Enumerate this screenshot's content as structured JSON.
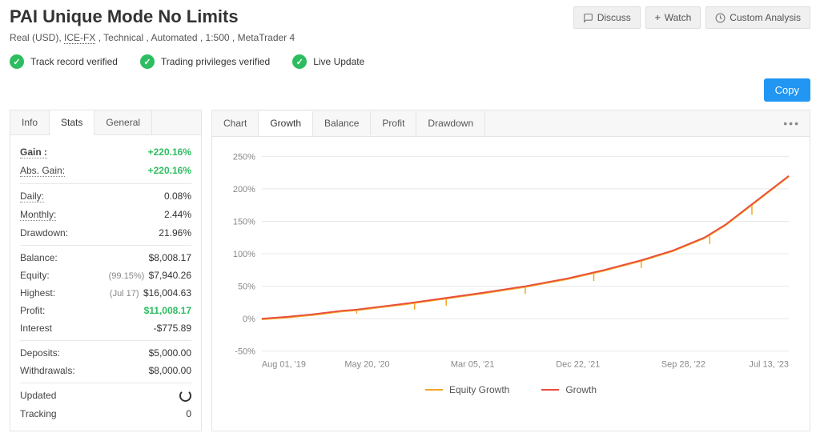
{
  "header": {
    "title": "PAI Unique Mode No Limits",
    "subtitle_pre": "Real (USD), ",
    "subtitle_link": "ICE-FX",
    "subtitle_post": " , Technical , Automated , 1:500 , MetaTrader 4",
    "buttons": {
      "discuss": "Discuss",
      "watch": "Watch",
      "custom": "Custom Analysis"
    }
  },
  "verify": {
    "track": "Track record verified",
    "priv": "Trading privileges verified",
    "live": "Live Update"
  },
  "copy_label": "Copy",
  "side_tabs": {
    "info": "Info",
    "stats": "Stats",
    "general": "General"
  },
  "stats": {
    "gain_l": "Gain :",
    "gain_v": "+220.16%",
    "abs_l": "Abs. Gain:",
    "abs_v": "+220.16%",
    "daily_l": "Daily:",
    "daily_v": "0.08%",
    "monthly_l": "Monthly:",
    "monthly_v": "2.44%",
    "dd_l": "Drawdown:",
    "dd_v": "21.96%",
    "bal_l": "Balance:",
    "bal_v": "$8,008.17",
    "eq_l": "Equity:",
    "eq_note": "(99.15%)",
    "eq_v": "$7,940.26",
    "hi_l": "Highest:",
    "hi_note": "(Jul 17)",
    "hi_v": "$16,004.63",
    "pr_l": "Profit:",
    "pr_v": "$11,008.17",
    "int_l": "Interest",
    "int_v": "-$775.89",
    "dep_l": "Deposits:",
    "dep_v": "$5,000.00",
    "wd_l": "Withdrawals:",
    "wd_v": "$8,000.00",
    "upd_l": "Updated",
    "trk_l": "Tracking",
    "trk_v": "0"
  },
  "chart_tabs": {
    "chart": "Chart",
    "growth": "Growth",
    "balance": "Balance",
    "profit": "Profit",
    "drawdown": "Drawdown"
  },
  "chart": {
    "ylim": [
      -50,
      250
    ],
    "yticks": [
      "-50%",
      "0%",
      "50%",
      "100%",
      "150%",
      "200%",
      "250%"
    ],
    "xticks": [
      "Aug 01, '19",
      "May 20, '20",
      "Mar 05, '21",
      "Dec 22, '21",
      "Sep 28, '22",
      "Jul 13, '23"
    ],
    "growth_color": "#e84c3d",
    "equity_color": "#f5a623",
    "grid_color": "#e8e8e8",
    "axis_color": "#888",
    "bg": "#ffffff",
    "growth_data": [
      [
        0,
        0
      ],
      [
        5,
        3
      ],
      [
        10,
        7
      ],
      [
        15,
        12
      ],
      [
        18,
        14
      ],
      [
        22,
        18
      ],
      [
        28,
        24
      ],
      [
        35,
        32
      ],
      [
        42,
        40
      ],
      [
        50,
        50
      ],
      [
        58,
        62
      ],
      [
        65,
        75
      ],
      [
        72,
        90
      ],
      [
        78,
        105
      ],
      [
        84,
        125
      ],
      [
        88,
        145
      ],
      [
        92,
        170
      ],
      [
        96,
        195
      ],
      [
        100,
        220
      ]
    ],
    "equity_dips": [
      [
        18,
        14,
        8
      ],
      [
        29,
        25,
        14
      ],
      [
        35,
        32,
        20
      ],
      [
        50,
        50,
        38
      ],
      [
        63,
        72,
        58
      ],
      [
        72,
        90,
        78
      ],
      [
        85,
        130,
        115
      ],
      [
        93,
        175,
        160
      ]
    ]
  },
  "legend": {
    "equity": "Equity Growth",
    "growth": "Growth"
  }
}
